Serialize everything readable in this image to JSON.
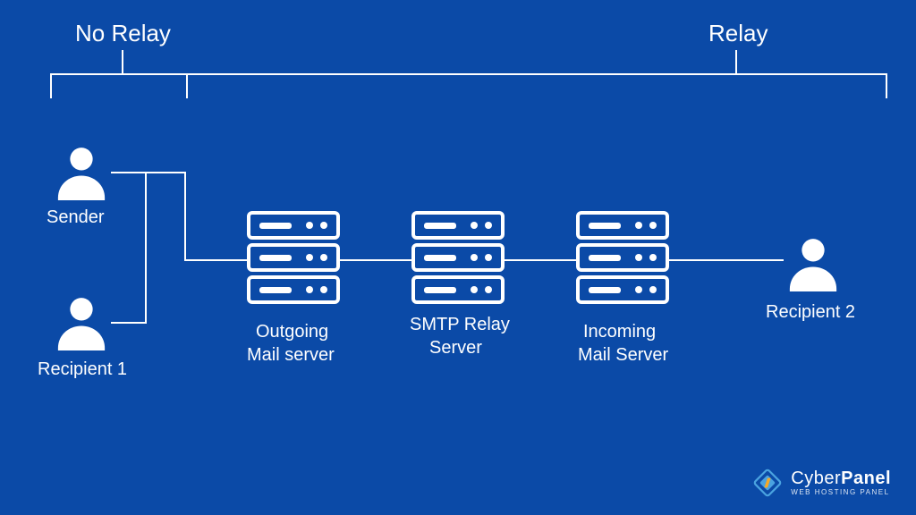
{
  "diagram": {
    "type": "flowchart",
    "background_color": "#0b4aa7",
    "line_color": "#ffffff",
    "text_color": "#ffffff",
    "label_fontsize": 20,
    "header_fontsize": 26,
    "line_thickness": 2,
    "headers": {
      "no_relay": "No Relay",
      "relay": "Relay"
    },
    "nodes": {
      "sender": {
        "label": "Sender",
        "type": "person"
      },
      "recipient1": {
        "label": "Recipient 1",
        "type": "person"
      },
      "recipient2": {
        "label": "Recipient 2",
        "type": "person"
      },
      "outgoing": {
        "label_line1": "Outgoing",
        "label_line2": "Mail server",
        "type": "server"
      },
      "smtp": {
        "label_line1": "SMTP Relay",
        "label_line2": "Server",
        "type": "server"
      },
      "incoming": {
        "label_line1": "Incoming",
        "label_line2": "Mail Server",
        "type": "server"
      }
    },
    "branding": {
      "name_light": "Cyber",
      "name_bold": "Panel",
      "tagline": "WEB HOSTING PANEL",
      "accent_color": "#f7a823",
      "diamond_color": "#4aa3e0"
    }
  }
}
